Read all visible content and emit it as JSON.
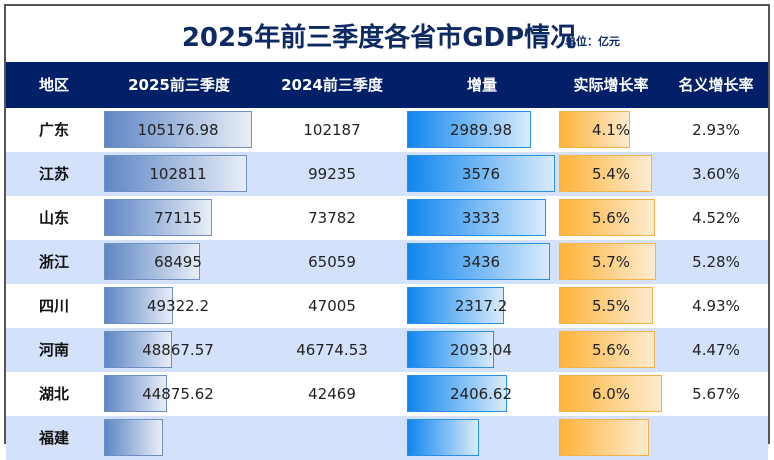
{
  "title": "2025年前三季度各省市GDP情况",
  "unit": "单位：亿元",
  "colors": {
    "header_bg": "#022067",
    "title_color": "#0d2a63",
    "alt_row": "#d4e1fa",
    "gdp_bar": "#5f86c4",
    "increase_bar": "#1086ee",
    "growth_bar": "#fdb338"
  },
  "columns": [
    "地区",
    "2025前三季度",
    "2024前三季度",
    "增量",
    "实际增长率",
    "名义增长率"
  ],
  "rows": [
    {
      "region": "广东",
      "gdp2025": "105176.98",
      "gdp2024": "102187",
      "increase": "2989.98",
      "real_growth": "4.1%",
      "nominal_growth": "2.93%"
    },
    {
      "region": "江苏",
      "gdp2025": "102811",
      "gdp2024": "99235",
      "increase": "3576",
      "real_growth": "5.4%",
      "nominal_growth": "3.60%"
    },
    {
      "region": "山东",
      "gdp2025": "77115",
      "gdp2024": "73782",
      "increase": "3333",
      "real_growth": "5.6%",
      "nominal_growth": "4.52%"
    },
    {
      "region": "浙江",
      "gdp2025": "68495",
      "gdp2024": "65059",
      "increase": "3436",
      "real_growth": "5.7%",
      "nominal_growth": "5.28%"
    },
    {
      "region": "四川",
      "gdp2025": "49322.2",
      "gdp2024": "47005",
      "increase": "2317.2",
      "real_growth": "5.5%",
      "nominal_growth": "4.93%"
    },
    {
      "region": "河南",
      "gdp2025": "48867.57",
      "gdp2024": "46774.53",
      "increase": "2093.04",
      "real_growth": "5.6%",
      "nominal_growth": "4.47%"
    },
    {
      "region": "湖北",
      "gdp2025": "44875.62",
      "gdp2024": "42469",
      "increase": "2406.62",
      "real_growth": "6.0%",
      "nominal_growth": "5.67%"
    },
    {
      "region": "福建",
      "gdp2025": "",
      "gdp2024": "",
      "increase": "",
      "real_growth": "",
      "nominal_growth": ""
    }
  ],
  "bar_widths": {
    "gdp2025": [
      148,
      143,
      108,
      96,
      69,
      68,
      63,
      59
    ],
    "increase": [
      124,
      148,
      139,
      143,
      97,
      87,
      100,
      72
    ],
    "real_growth": [
      71,
      93,
      96,
      97,
      94,
      96,
      103,
      90
    ]
  }
}
